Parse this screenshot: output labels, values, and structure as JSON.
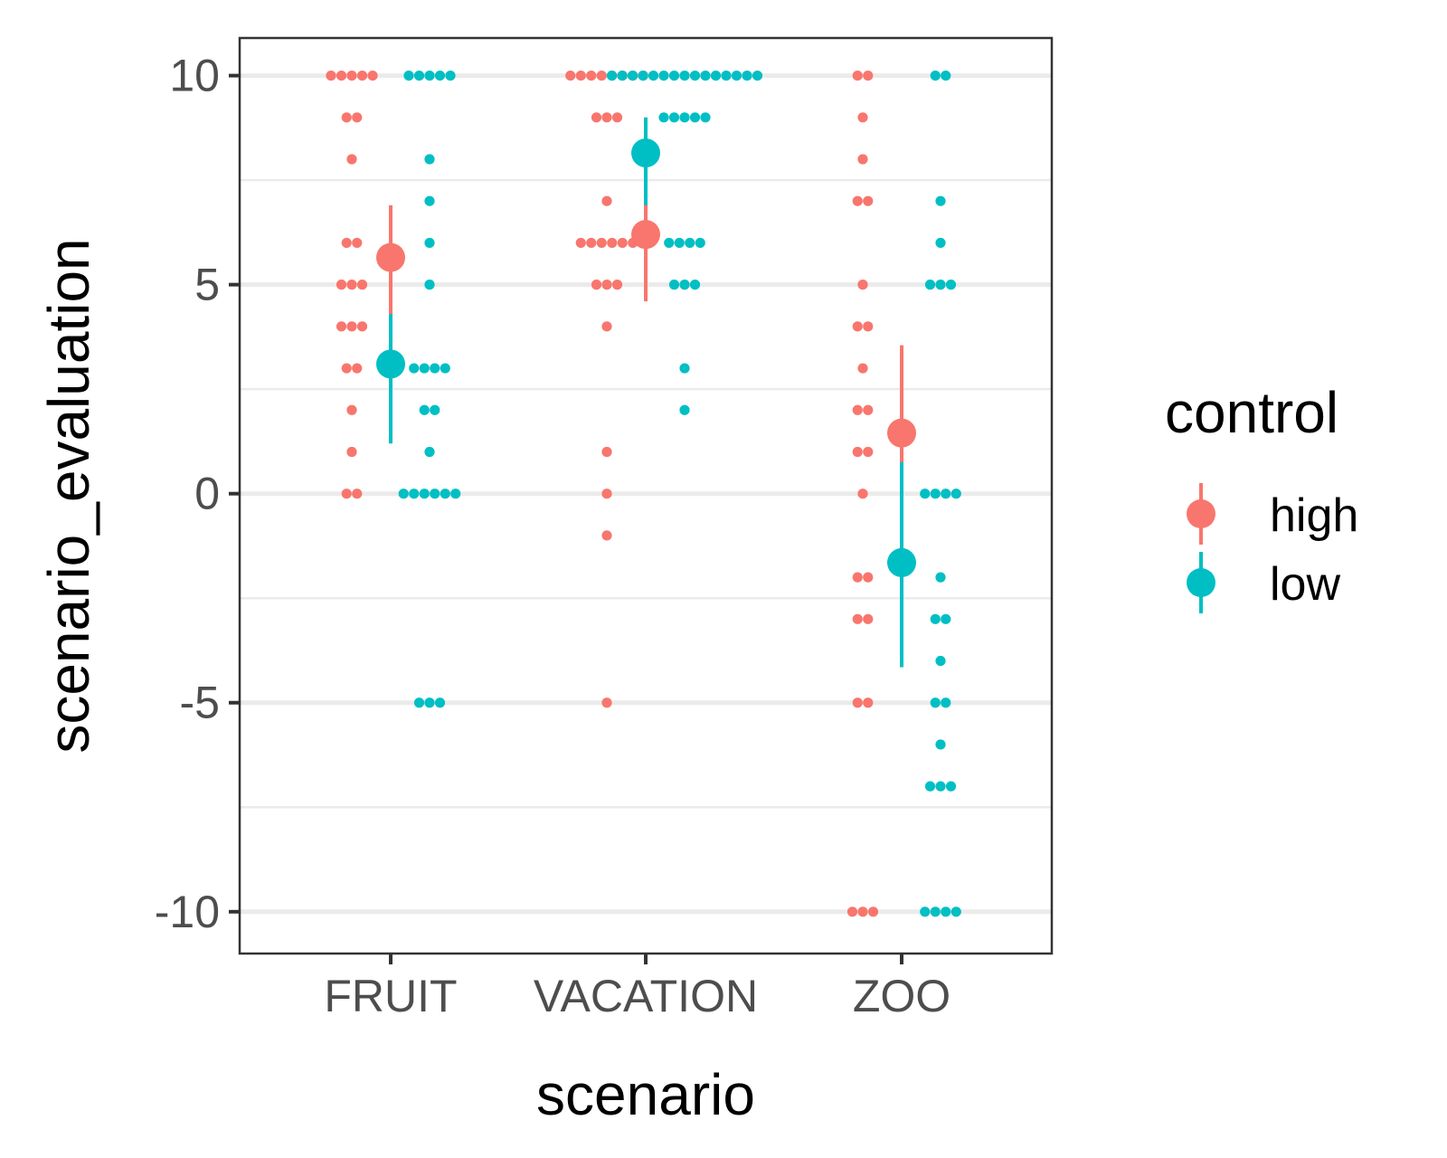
{
  "chart_data": {
    "type": "scatter",
    "xlabel": "scenario",
    "ylabel": "scenario_evaluation",
    "categories": [
      "FRUIT",
      "VACATION",
      "ZOO"
    ],
    "ylim": [
      -11,
      10.9
    ],
    "yticks": [
      -10,
      -5,
      0,
      5,
      10
    ],
    "grid": true,
    "legend": {
      "title": "control",
      "position": "right"
    },
    "series": [
      {
        "name": "high",
        "color": "#F8766D",
        "points": {
          "FRUIT": [
            10,
            10,
            10,
            10,
            10,
            9,
            9,
            8,
            6,
            6,
            5,
            5,
            5,
            4,
            4,
            4,
            3,
            3,
            2,
            1,
            0,
            0
          ],
          "VACATION": [
            10,
            10,
            10,
            10,
            10,
            10,
            10,
            10,
            9,
            9,
            9,
            7,
            6,
            6,
            6,
            6,
            6,
            6,
            5,
            5,
            5,
            4,
            1,
            0,
            -1,
            -5
          ],
          "ZOO": [
            10,
            10,
            9,
            8,
            7,
            7,
            5,
            4,
            4,
            3,
            2,
            2,
            1,
            1,
            0,
            -2,
            -2,
            -3,
            -3,
            -5,
            -5,
            -10,
            -10,
            -10
          ]
        },
        "summary": [
          {
            "category": "FRUIT",
            "mean": 5.65,
            "lower": 4.3,
            "upper": 6.9
          },
          {
            "category": "VACATION",
            "mean": 6.2,
            "lower": 4.6,
            "upper": 7.5
          },
          {
            "category": "ZOO",
            "mean": 1.45,
            "lower": -0.8,
            "upper": 3.55
          }
        ]
      },
      {
        "name": "low",
        "color": "#00BFC4",
        "points": {
          "FRUIT": [
            10,
            10,
            10,
            10,
            10,
            8,
            7,
            6,
            5,
            3,
            3,
            3,
            3,
            2,
            2,
            1,
            0,
            0,
            0,
            0,
            0,
            0,
            -5,
            -5,
            -5
          ],
          "VACATION": [
            10,
            10,
            10,
            10,
            10,
            10,
            10,
            10,
            10,
            10,
            10,
            10,
            10,
            10,
            10,
            9,
            9,
            9,
            9,
            9,
            6,
            6,
            6,
            6,
            5,
            5,
            5,
            3,
            2
          ],
          "ZOO": [
            10,
            10,
            7,
            6,
            5,
            5,
            5,
            0,
            0,
            0,
            0,
            -2,
            -3,
            -3,
            -4,
            -5,
            -5,
            -6,
            -7,
            -7,
            -7,
            -10,
            -10,
            -10,
            -10
          ]
        },
        "summary": [
          {
            "category": "FRUIT",
            "mean": 3.1,
            "lower": 1.2,
            "upper": 4.3
          },
          {
            "category": "VACATION",
            "mean": 8.15,
            "lower": 6.9,
            "upper": 9.0
          },
          {
            "category": "ZOO",
            "mean": -1.65,
            "lower": -4.15,
            "upper": 0.75
          }
        ]
      }
    ]
  }
}
